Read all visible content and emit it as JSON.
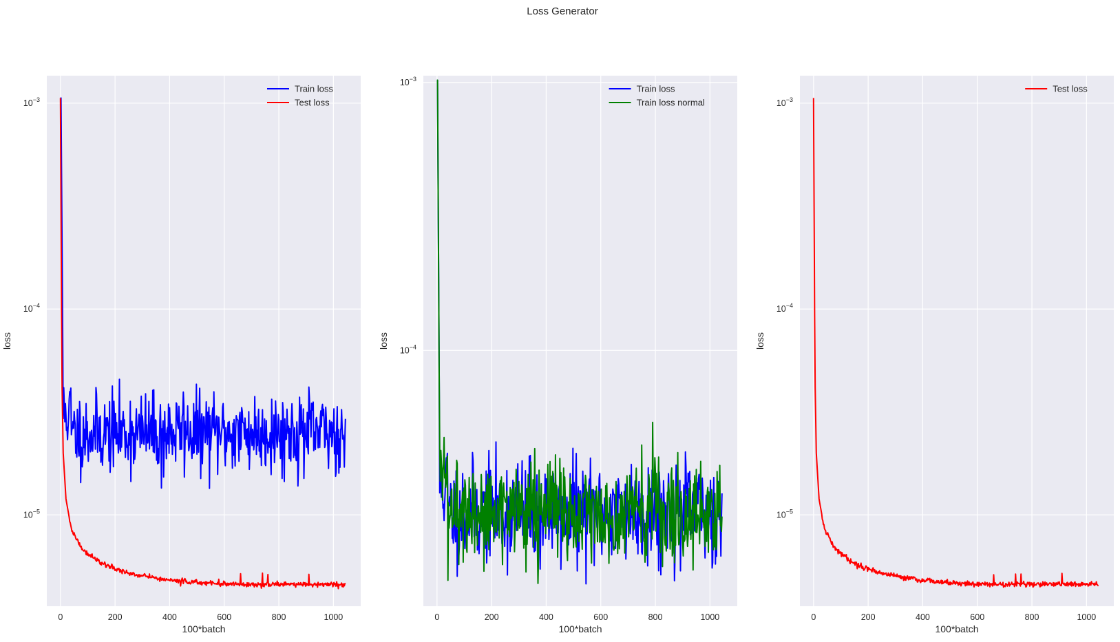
{
  "figure": {
    "suptitle": "Loss Generator",
    "background": "#ffffff",
    "axes_facecolor": "#eaeaf2",
    "grid_color": "#ffffff"
  },
  "chart_data": [
    {
      "type": "line",
      "xlabel": "100*batch",
      "ylabel": "loss",
      "yscale": "log",
      "xlim": [
        -50,
        1100
      ],
      "ylim": [
        3.6e-06,
        0.00136
      ],
      "xticks": [
        0,
        200,
        400,
        600,
        800,
        1000
      ],
      "yticks": [
        {
          "value": 1e-05,
          "base": "10",
          "exp": "−5"
        },
        {
          "value": 0.0001,
          "base": "10",
          "exp": "−4"
        },
        {
          "value": 0.001,
          "base": "10",
          "exp": "−3"
        }
      ],
      "grid": true,
      "legend": "upper right",
      "series": [
        {
          "name": "Train loss",
          "color": "#0000ff",
          "values": {
            "start": 0.00106,
            "plateau": 2.5e-05,
            "noise": 0.22,
            "spikes": [
              [
                370,
                1.35e-05
              ],
              [
                450,
                3.95e-05
              ]
            ]
          }
        },
        {
          "name": "Test loss",
          "color": "#ff0000",
          "values": {
            "start": 0.00106,
            "end": 4.6e-06,
            "knots": [
              [
                0,
                0.00106
              ],
              [
                5,
                5e-05
              ],
              [
                10,
                2e-05
              ],
              [
                20,
                1.2e-05
              ],
              [
                40,
                8.5e-06
              ],
              [
                80,
                6.8e-06
              ],
              [
                150,
                5.8e-06
              ],
              [
                250,
                5.2e-06
              ],
              [
                400,
                4.8e-06
              ],
              [
                600,
                4.6e-06
              ],
              [
                1045,
                4.6e-06
              ]
            ]
          }
        }
      ]
    },
    {
      "type": "line",
      "xlabel": "100*batch",
      "ylabel": "loss",
      "yscale": "log",
      "xlim": [
        -50,
        1100
      ],
      "ylim": [
        1.11e-05,
        0.00106
      ],
      "xticks": [
        0,
        200,
        400,
        600,
        800,
        1000
      ],
      "yticks": [
        {
          "value": 0.0001,
          "base": "10",
          "exp": "−4"
        },
        {
          "value": 0.001,
          "base": "10",
          "exp": "−3"
        }
      ],
      "grid": true,
      "legend": "upper right",
      "series": [
        {
          "name": "Train loss",
          "color": "#0000ff",
          "values": {
            "start": 0.00102,
            "plateau": 2.5e-05,
            "noise": 0.22
          }
        },
        {
          "name": "Train loss normal",
          "color": "#008000",
          "values": {
            "start": 0.00102,
            "plateau": 2.5e-05,
            "noise": 0.22,
            "spikes": [
              [
                370,
                1.35e-05
              ],
              [
                450,
                3.95e-05
              ]
            ]
          }
        }
      ]
    },
    {
      "type": "line",
      "xlabel": "100*batch",
      "ylabel": "loss",
      "yscale": "log",
      "xlim": [
        -50,
        1100
      ],
      "ylim": [
        3.6e-06,
        0.00136
      ],
      "xticks": [
        0,
        200,
        400,
        600,
        800,
        1000
      ],
      "yticks": [
        {
          "value": 1e-05,
          "base": "10",
          "exp": "−5"
        },
        {
          "value": 0.0001,
          "base": "10",
          "exp": "−4"
        },
        {
          "value": 0.001,
          "base": "10",
          "exp": "−3"
        }
      ],
      "grid": true,
      "legend": "upper right",
      "series": [
        {
          "name": "Test loss",
          "color": "#ff0000",
          "values": {
            "start": 0.00106,
            "end": 4.6e-06,
            "knots": [
              [
                0,
                0.00106
              ],
              [
                5,
                5e-05
              ],
              [
                10,
                2e-05
              ],
              [
                20,
                1.2e-05
              ],
              [
                40,
                8.5e-06
              ],
              [
                80,
                6.8e-06
              ],
              [
                150,
                5.8e-06
              ],
              [
                250,
                5.2e-06
              ],
              [
                400,
                4.8e-06
              ],
              [
                600,
                4.6e-06
              ],
              [
                1045,
                4.6e-06
              ]
            ]
          }
        }
      ]
    }
  ]
}
